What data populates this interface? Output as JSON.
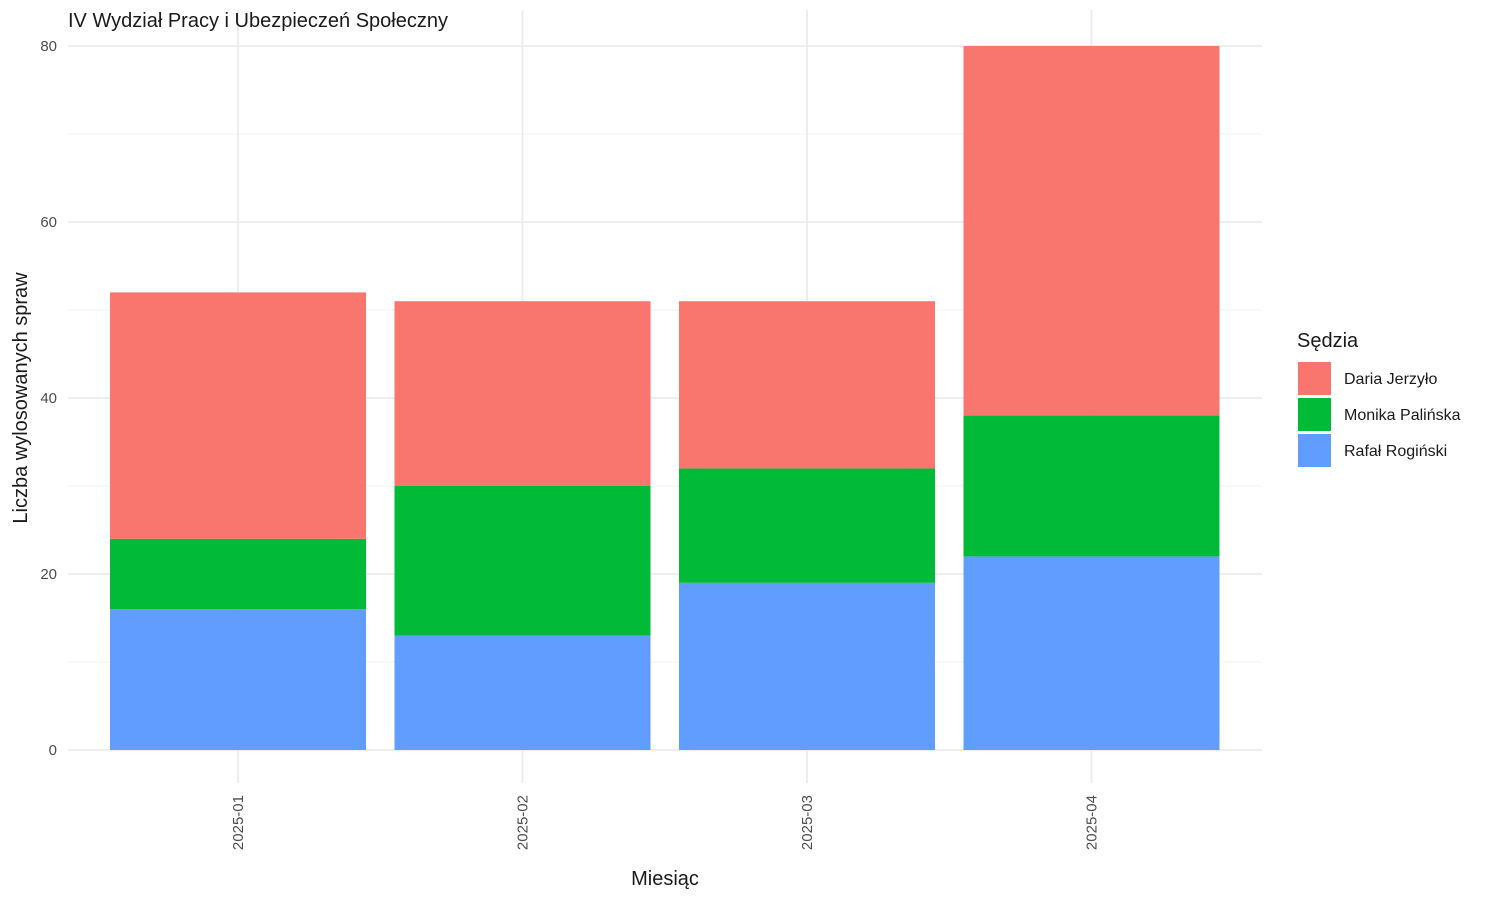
{
  "chart_data": {
    "type": "bar",
    "stacked": true,
    "title": "IV Wydział Pracy i Ubezpieczeń Społeczny",
    "xlabel": "Miesiąc",
    "ylabel": "Liczba wylosowanych spraw",
    "categories": [
      "2025-01",
      "2025-02",
      "2025-03",
      "2025-04"
    ],
    "ylim": [
      0,
      80
    ],
    "yticks": [
      0,
      20,
      40,
      60,
      80
    ],
    "grid": true,
    "legend": {
      "title": "Sędzia",
      "placement": "right"
    },
    "series": [
      {
        "name": "Rafał Rogiński",
        "color": "#619cff",
        "values": [
          16,
          13,
          19,
          22
        ]
      },
      {
        "name": "Monika Palińska",
        "color": "#00ba38",
        "values": [
          8,
          17,
          13,
          16
        ]
      },
      {
        "name": "Daria Jerzyło",
        "color": "#f8766d",
        "values": [
          28,
          21,
          19,
          42
        ]
      }
    ],
    "legend_order": [
      "Daria Jerzyło",
      "Monika Palińska",
      "Rafał Rogiński"
    ]
  }
}
